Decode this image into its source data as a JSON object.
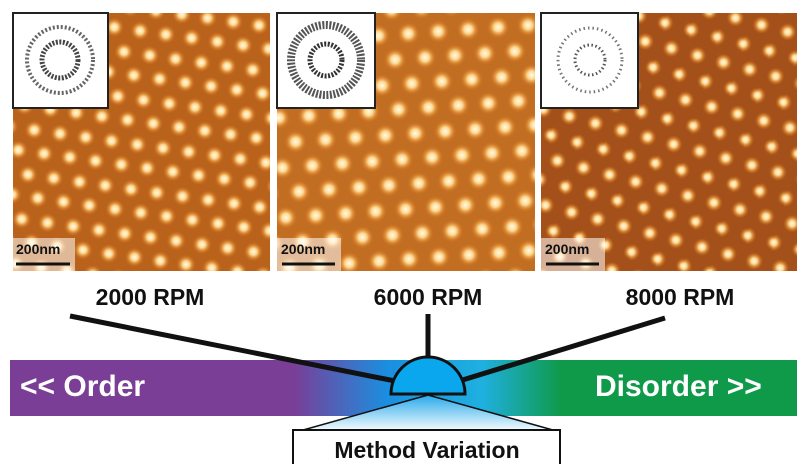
{
  "panels": [
    {
      "label": "2000 RPM",
      "scale_bar": "200nm"
    },
    {
      "label": "6000 RPM",
      "scale_bar": "200nm"
    },
    {
      "label": "8000 RPM",
      "scale_bar": "200nm"
    }
  ],
  "spectrum": {
    "left": "<< Order",
    "right": "Disorder >>",
    "center": "Method Variation"
  }
}
